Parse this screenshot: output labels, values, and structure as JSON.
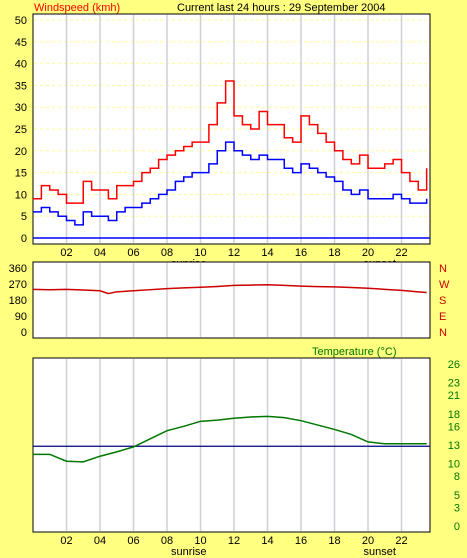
{
  "colors": {
    "background": "#ffff80",
    "plot_bg": "#ffffff",
    "grid": "#cfcfd8",
    "gust": "#ff0000",
    "avg": "#0000ff",
    "direction": "#cc0000",
    "temperature": "#007700",
    "temp_ref": "#000080",
    "axis": "#000000"
  },
  "chart_data": [
    {
      "type": "line",
      "id": "wind",
      "title": "Current last 24 hours : 29 September 2004",
      "ylabel": "Windspeed (kmh)",
      "ylim": [
        0,
        50
      ],
      "yticks": [
        0,
        5,
        10,
        15,
        20,
        25,
        30,
        35,
        40,
        45,
        50
      ],
      "x_tick_labels": [
        "02",
        "04",
        "06",
        "08",
        "10",
        "12",
        "14",
        "16",
        "18",
        "20",
        "22"
      ],
      "x_tick_hours": [
        2,
        4,
        6,
        8,
        10,
        12,
        14,
        16,
        18,
        20,
        22
      ],
      "xlim_hours": [
        0,
        23.7
      ],
      "annotations": [
        {
          "text": "sunrise",
          "hour": 9.3
        },
        {
          "text": "sunset",
          "hour": 20.7
        }
      ],
      "series": [
        {
          "role": "gust",
          "x": [
            0,
            0.5,
            1,
            1.5,
            2,
            2.5,
            3,
            3.5,
            4,
            4.5,
            5,
            5.5,
            6,
            6.5,
            7,
            7.5,
            8,
            8.5,
            9,
            9.5,
            10,
            10.5,
            11,
            11.5,
            12,
            12.5,
            13,
            13.5,
            14,
            14.5,
            15,
            15.5,
            16,
            16.5,
            17,
            17.5,
            18,
            18.5,
            19,
            19.5,
            20,
            20.5,
            21,
            21.5,
            22,
            22.5,
            23,
            23.5
          ],
          "values": [
            9,
            12,
            11,
            10,
            8,
            8,
            13,
            11,
            11,
            9,
            12,
            12,
            13,
            15,
            16,
            18,
            19,
            20,
            21,
            22,
            22,
            26,
            31,
            36,
            28,
            26,
            25,
            29,
            26,
            26,
            23,
            22,
            28,
            26,
            24,
            22,
            20,
            18,
            17,
            19,
            16,
            16,
            17,
            18,
            15,
            13,
            11,
            16
          ]
        },
        {
          "role": "average",
          "x": [
            0,
            0.5,
            1,
            1.5,
            2,
            2.5,
            3,
            3.5,
            4,
            4.5,
            5,
            5.5,
            6,
            6.5,
            7,
            7.5,
            8,
            8.5,
            9,
            9.5,
            10,
            10.5,
            11,
            11.5,
            12,
            12.5,
            13,
            13.5,
            14,
            14.5,
            15,
            15.5,
            16,
            16.5,
            17,
            17.5,
            18,
            18.5,
            19,
            19.5,
            20,
            20.5,
            21,
            21.5,
            22,
            22.5,
            23,
            23.5
          ],
          "values": [
            6,
            7,
            6,
            5,
            4,
            3,
            6,
            5,
            5,
            4,
            6,
            7,
            7,
            8,
            9,
            10,
            11,
            13,
            14,
            15,
            15,
            17,
            20,
            22,
            20,
            19,
            18,
            19,
            18,
            18,
            16,
            15,
            17,
            16,
            15,
            14,
            13,
            11,
            10,
            11,
            9,
            9,
            9,
            10,
            9,
            8,
            8,
            9
          ]
        }
      ]
    },
    {
      "type": "line",
      "id": "direction",
      "ylim": [
        0,
        360
      ],
      "yticks": [
        0,
        90,
        180,
        270,
        360
      ],
      "right_labels": [
        "N",
        "W",
        "S",
        "E",
        "N"
      ],
      "x": [
        0,
        1,
        2,
        3,
        4,
        4.5,
        5,
        6,
        7,
        8,
        9,
        10,
        11,
        12,
        13,
        14,
        15,
        16,
        17,
        18,
        19,
        20,
        21,
        22,
        23,
        23.5
      ],
      "values": [
        240,
        238,
        240,
        236,
        232,
        216,
        226,
        232,
        238,
        244,
        248,
        252,
        256,
        262,
        264,
        266,
        262,
        258,
        255,
        254,
        250,
        246,
        240,
        234,
        226,
        222
      ]
    },
    {
      "type": "line",
      "id": "temperature",
      "ylabel": "Temperature (°C)",
      "ylim": [
        0,
        26
      ],
      "yticks": [
        0,
        3,
        5,
        8,
        10,
        13,
        16,
        18,
        21,
        23,
        26
      ],
      "reference_value": 12.8,
      "x": [
        0,
        1,
        2,
        3,
        4,
        5,
        6,
        7,
        8,
        9,
        10,
        11,
        12,
        13,
        14,
        15,
        16,
        17,
        18,
        19,
        20,
        21,
        22,
        23,
        23.5
      ],
      "values": [
        11.5,
        11.5,
        10.4,
        10.3,
        11.2,
        11.9,
        12.7,
        14.0,
        15.3,
        16.0,
        16.8,
        17.0,
        17.3,
        17.5,
        17.6,
        17.4,
        16.9,
        16.2,
        15.5,
        14.7,
        13.5,
        13.2,
        13.2,
        13.2,
        13.2
      ]
    }
  ]
}
